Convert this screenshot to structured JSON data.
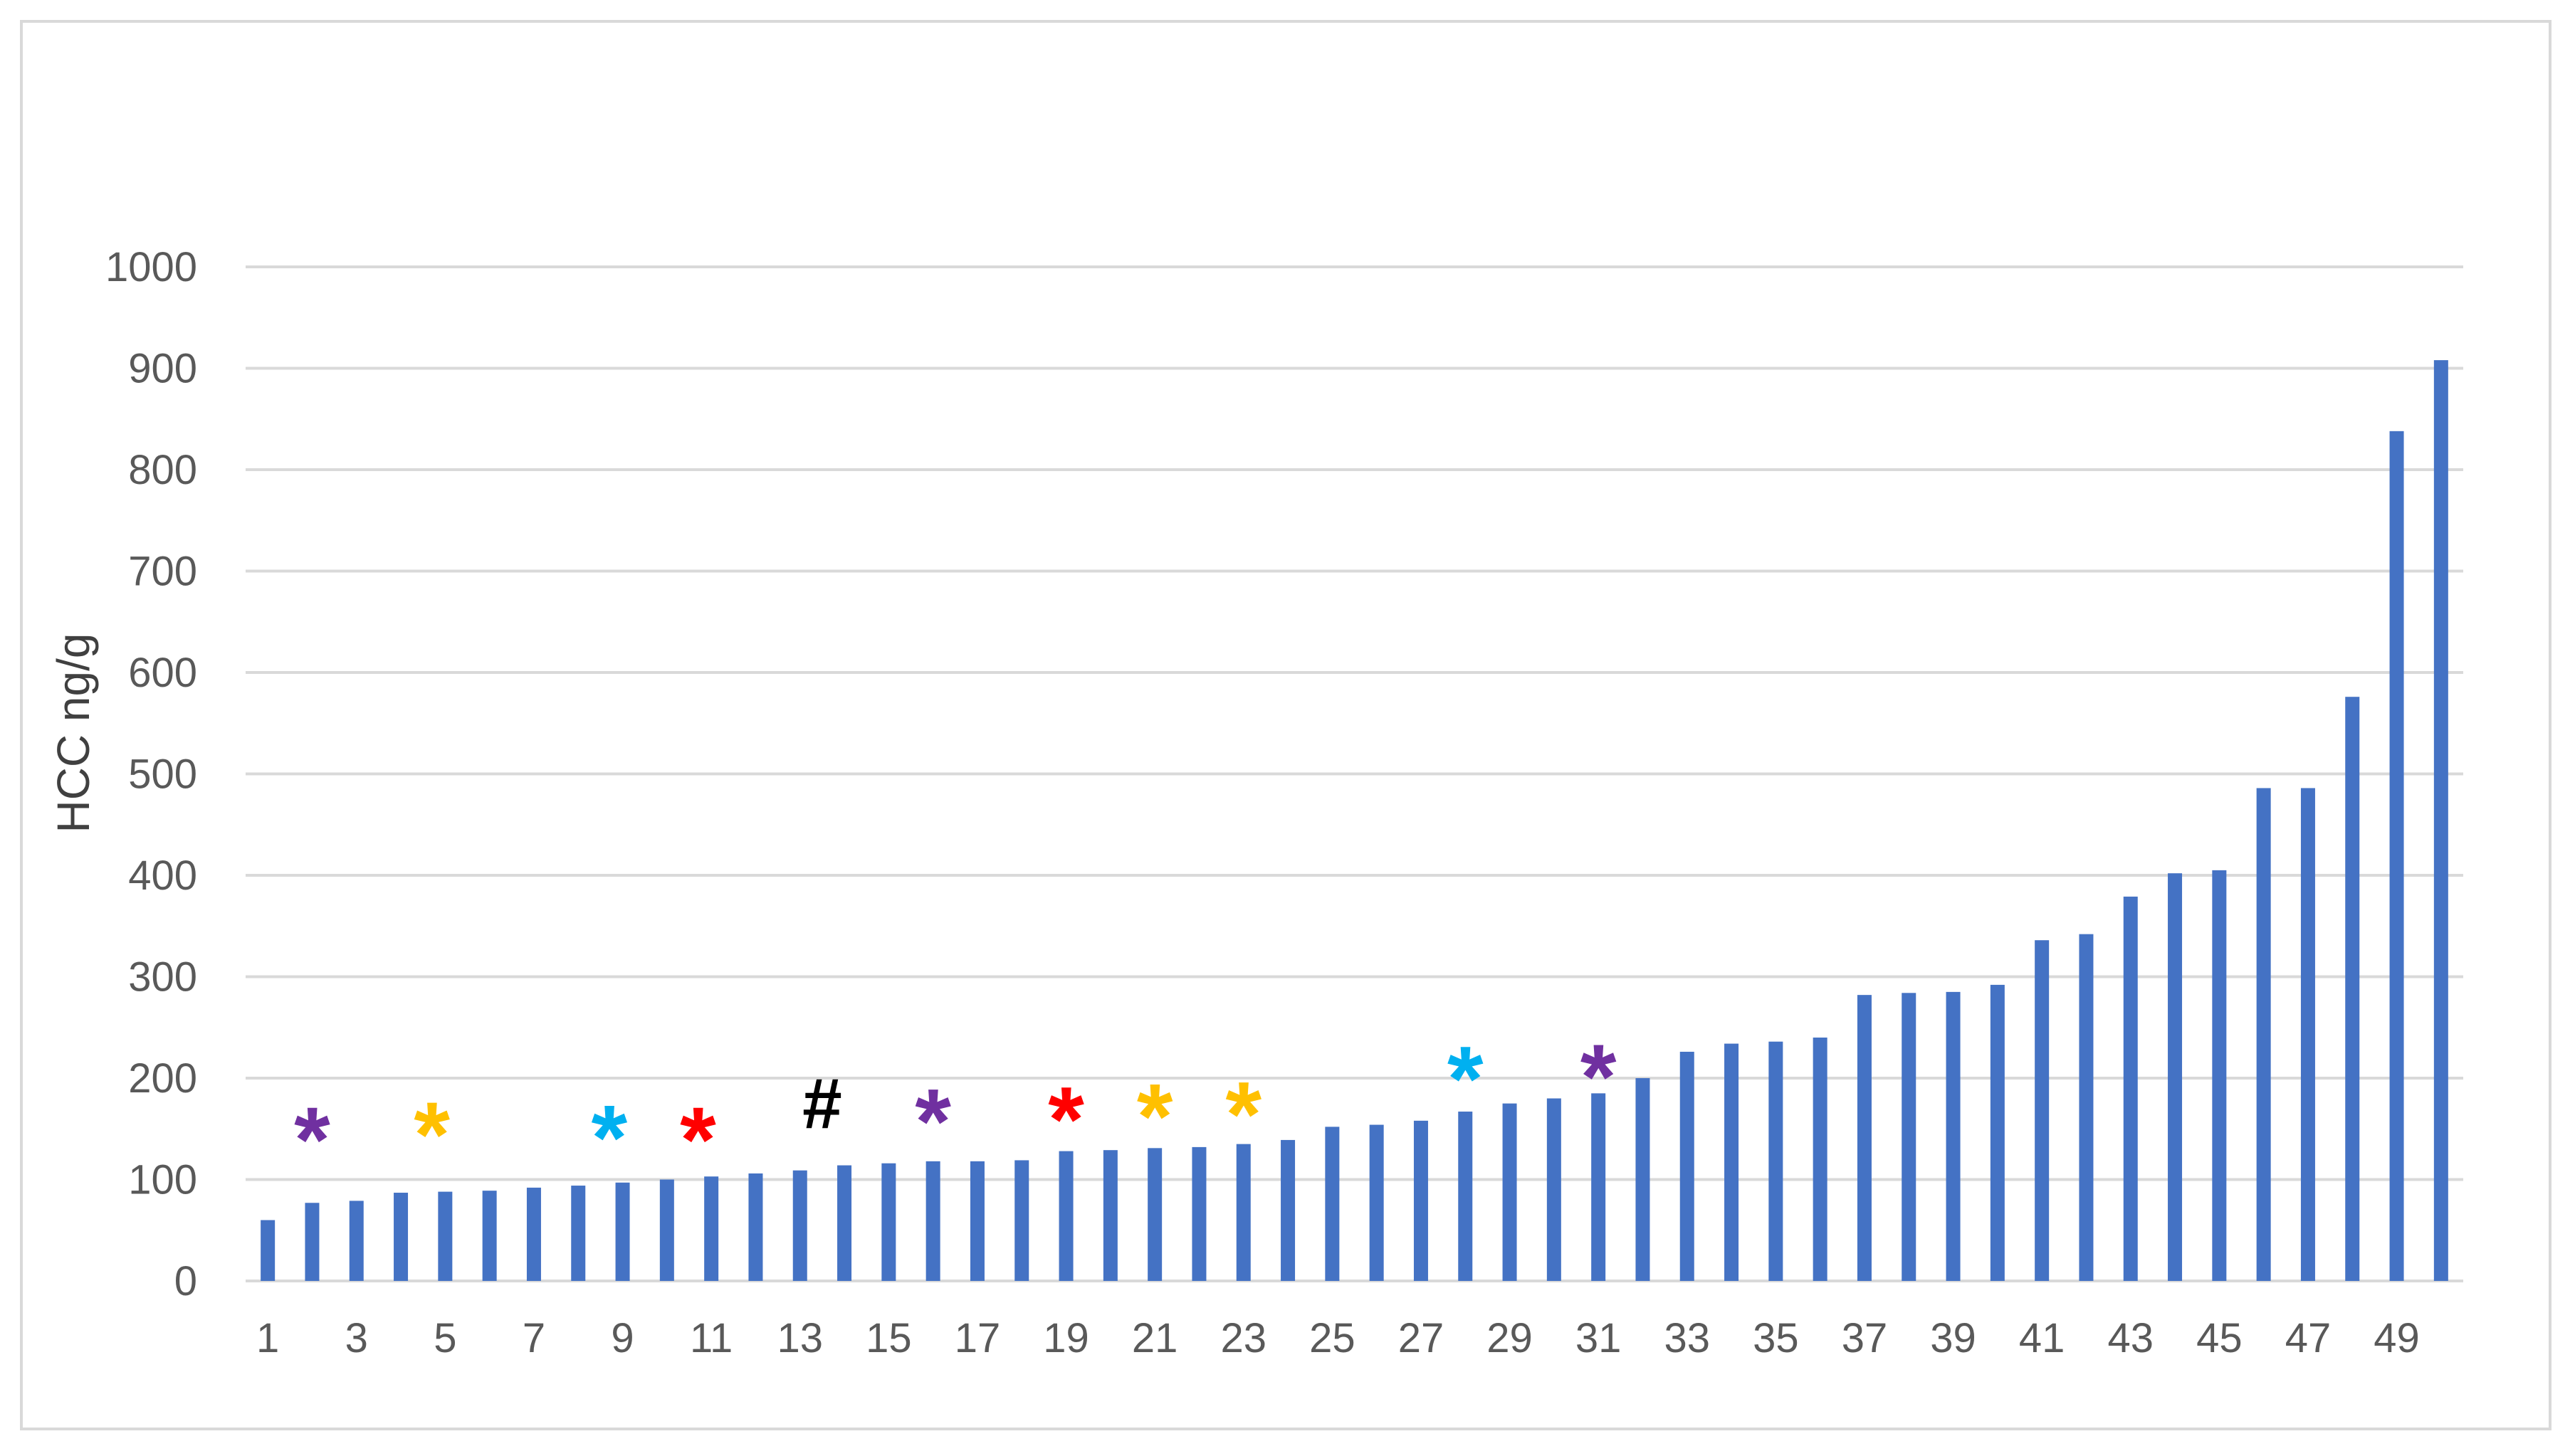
{
  "chart_data": {
    "type": "bar",
    "title": "",
    "xlabel": "",
    "ylabel": "HCC ng/g",
    "ylim": [
      0,
      1000
    ],
    "yticks": [
      "0",
      "100",
      "200",
      "300",
      "400",
      "500",
      "600",
      "700",
      "800",
      "900",
      "1000"
    ],
    "grid": true,
    "legend": "none",
    "bar_color": "#4472c4",
    "categories": [
      "1",
      "2",
      "3",
      "4",
      "5",
      "6",
      "7",
      "8",
      "9",
      "10",
      "11",
      "12",
      "13",
      "14",
      "15",
      "16",
      "17",
      "18",
      "19",
      "20",
      "21",
      "22",
      "23",
      "24",
      "25",
      "26",
      "27",
      "28",
      "29",
      "30",
      "31",
      "32",
      "33",
      "34",
      "35",
      "36",
      "37",
      "38",
      "39",
      "40",
      "41",
      "42",
      "43",
      "44",
      "45",
      "46",
      "47",
      "48",
      "49",
      "50"
    ],
    "xtick_labels": [
      "1",
      "3",
      "5",
      "7",
      "9",
      "11",
      "13",
      "15",
      "17",
      "19",
      "21",
      "23",
      "25",
      "27",
      "29",
      "31",
      "33",
      "35",
      "37",
      "39",
      "41",
      "43",
      "45",
      "47",
      "49"
    ],
    "values": [
      60,
      77,
      79,
      87,
      88,
      89,
      92,
      94,
      97,
      100,
      103,
      106,
      109,
      114,
      116,
      118,
      118,
      119,
      128,
      129,
      131,
      132,
      135,
      139,
      152,
      154,
      158,
      167,
      175,
      180,
      185,
      200,
      226,
      234,
      236,
      240,
      282,
      284,
      285,
      292,
      336,
      342,
      379,
      402,
      405,
      486,
      486,
      576,
      838,
      908
    ],
    "annotations": [
      {
        "bar": 2,
        "symbol": "*",
        "color": "#7030a0",
        "y": 150
      },
      {
        "bar": 4.7,
        "symbol": "*",
        "color": "#ffc000",
        "y": 155
      },
      {
        "bar": 8.7,
        "symbol": "*",
        "color": "#00b0f0",
        "y": 152
      },
      {
        "bar": 10.7,
        "symbol": "*",
        "color": "#ff0000",
        "y": 150
      },
      {
        "bar": 13.5,
        "symbol": "#",
        "color": "#000000",
        "y": 165
      },
      {
        "bar": 16,
        "symbol": "*",
        "color": "#7030a0",
        "y": 168
      },
      {
        "bar": 19,
        "symbol": "*",
        "color": "#ff0000",
        "y": 170
      },
      {
        "bar": 21,
        "symbol": "*",
        "color": "#ffc000",
        "y": 173
      },
      {
        "bar": 23,
        "symbol": "*",
        "color": "#ffc000",
        "y": 175
      },
      {
        "bar": 28,
        "symbol": "*",
        "color": "#00b0f0",
        "y": 210
      },
      {
        "bar": 31,
        "symbol": "*",
        "color": "#7030a0",
        "y": 212
      }
    ]
  }
}
